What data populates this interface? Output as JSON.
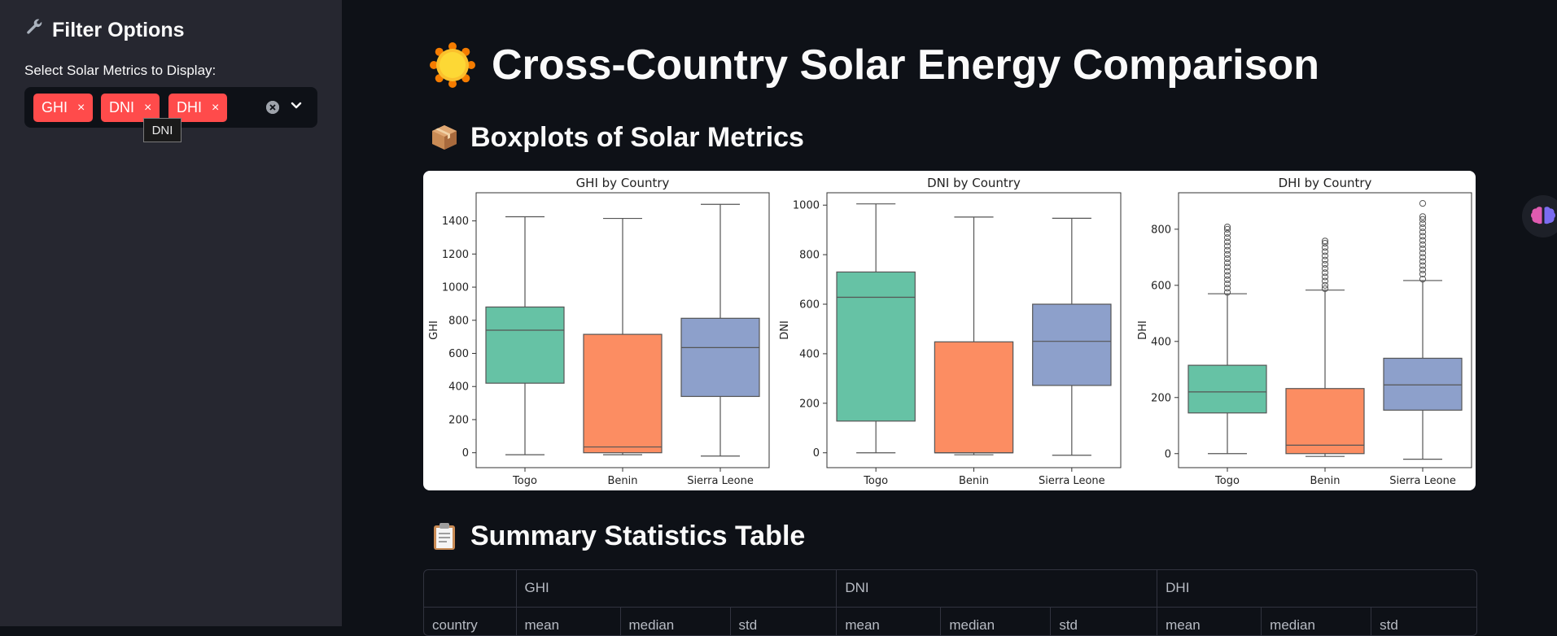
{
  "sidebar": {
    "title": "Filter Options",
    "title_icon": "wrench-icon",
    "select_label": "Select Solar Metrics to Display:",
    "selected_tags": [
      "GHI",
      "DNI",
      "DHI"
    ],
    "tag_remove_glyph": "×",
    "tooltip": "DNI"
  },
  "page": {
    "title": "Cross-Country Solar Energy Comparison",
    "title_icon": "sun-icon",
    "boxplots_heading": "Boxplots of Solar Metrics",
    "boxplots_icon": "package-icon",
    "summary_heading": "Summary Statistics Table",
    "summary_icon": "clipboard-icon"
  },
  "colors": {
    "accent": "#ff4b4b",
    "sidebar_bg": "#262730",
    "main_bg": "#0e1117",
    "togo": "#66c2a5",
    "benin": "#fc8d62",
    "sierra_leone": "#8da0cb"
  },
  "chart_data": [
    {
      "type": "boxplot",
      "title": "GHI by Country",
      "xlabel": "",
      "ylabel": "GHI",
      "categories": [
        "Togo",
        "Benin",
        "Sierra Leone"
      ],
      "yticks": [
        0,
        200,
        400,
        600,
        800,
        1000,
        1200,
        1400
      ],
      "ylim": [
        -90,
        1570
      ],
      "boxes": [
        {
          "min": -12,
          "q1": 420,
          "median": 740,
          "q3": 880,
          "max": 1425
        },
        {
          "min": -12,
          "q1": 0,
          "median": 35,
          "q3": 715,
          "max": 1415
        },
        {
          "min": -20,
          "q1": 340,
          "median": 635,
          "q3": 812,
          "max": 1500
        }
      ],
      "outliers": [
        [],
        [],
        []
      ]
    },
    {
      "type": "boxplot",
      "title": "DNI by Country",
      "xlabel": "",
      "ylabel": "DNI",
      "categories": [
        "Togo",
        "Benin",
        "Sierra Leone"
      ],
      "yticks": [
        0,
        200,
        400,
        600,
        800,
        1000
      ],
      "ylim": [
        -60,
        1050
      ],
      "boxes": [
        {
          "min": 0,
          "q1": 128,
          "median": 628,
          "q3": 730,
          "max": 1005
        },
        {
          "min": -8,
          "q1": 0,
          "median": 0,
          "q3": 448,
          "max": 952
        },
        {
          "min": -10,
          "q1": 272,
          "median": 450,
          "q3": 600,
          "max": 947
        }
      ],
      "outliers": [
        [],
        [],
        []
      ]
    },
    {
      "type": "boxplot",
      "title": "DHI by Country",
      "xlabel": "",
      "ylabel": "DHI",
      "categories": [
        "Togo",
        "Benin",
        "Sierra Leone"
      ],
      "yticks": [
        0,
        200,
        400,
        600,
        800
      ],
      "ylim": [
        -50,
        930
      ],
      "boxes": [
        {
          "min": 0,
          "q1": 145,
          "median": 220,
          "q3": 315,
          "max": 570
        },
        {
          "min": -10,
          "q1": 0,
          "median": 30,
          "q3": 232,
          "max": 583
        },
        {
          "min": -20,
          "q1": 155,
          "median": 245,
          "q3": 340,
          "max": 617
        }
      ],
      "outliers": [
        [
          575,
          590,
          605,
          620,
          635,
          650,
          665,
          680,
          695,
          710,
          725,
          740,
          755,
          770,
          785,
          800,
          808
        ],
        [
          588,
          600,
          615,
          630,
          645,
          660,
          675,
          690,
          705,
          720,
          735,
          750,
          758
        ],
        [
          622,
          640,
          655,
          670,
          685,
          700,
          715,
          730,
          745,
          760,
          775,
          790,
          805,
          820,
          835,
          845,
          892
        ]
      ]
    }
  ],
  "table": {
    "header_groups": [
      "",
      "GHI",
      "DNI",
      "DHI"
    ],
    "subheaders": [
      "country",
      "mean",
      "median",
      "std",
      "mean",
      "median",
      "std",
      "mean",
      "median",
      "std"
    ]
  }
}
